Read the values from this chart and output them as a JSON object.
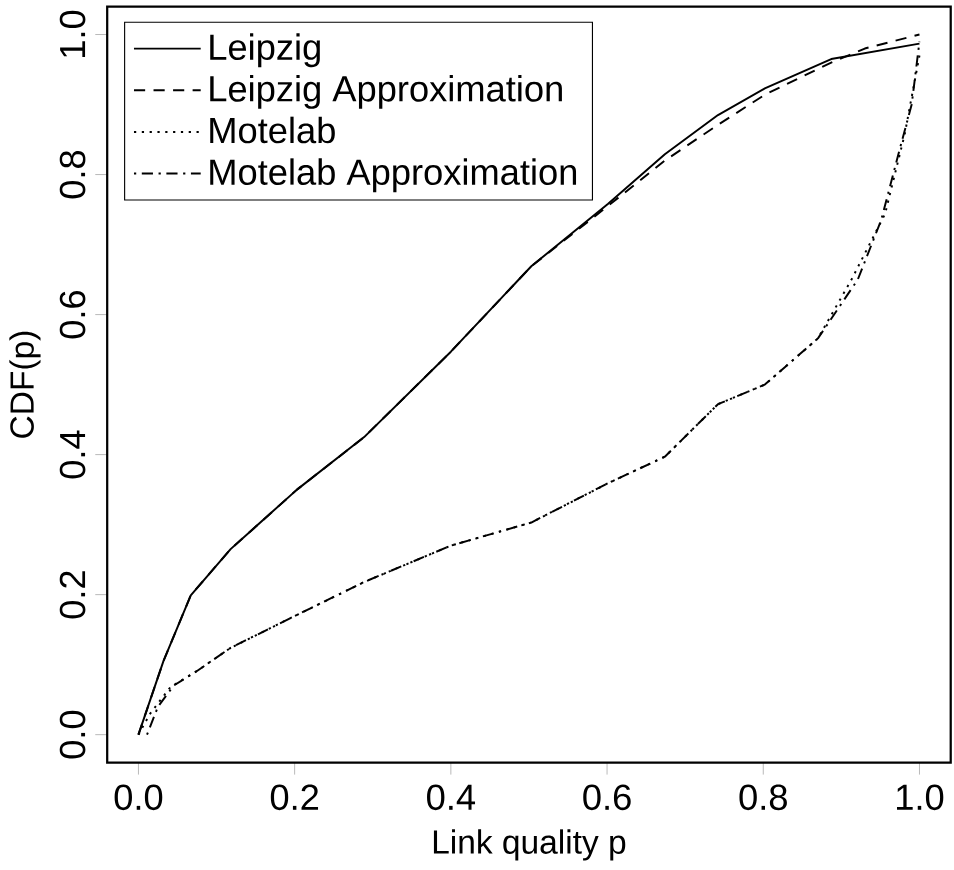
{
  "chart_data": {
    "type": "line",
    "xlabel": "Link quality p",
    "ylabel": "CDF(p)",
    "xlim": [
      -0.04,
      1.04
    ],
    "ylim": [
      -0.04,
      1.04
    ],
    "xticks": [
      {
        "value": 0,
        "label": "0.0"
      },
      {
        "value": 0.2,
        "label": "0.2"
      },
      {
        "value": 0.4,
        "label": "0.4"
      },
      {
        "value": 0.6,
        "label": "0.6"
      },
      {
        "value": 0.8,
        "label": "0.8"
      },
      {
        "value": 1,
        "label": "1.0"
      }
    ],
    "yticks": [
      {
        "value": 0,
        "label": "0.0"
      },
      {
        "value": 0.2,
        "label": "0.2"
      },
      {
        "value": 0.4,
        "label": "0.4"
      },
      {
        "value": 0.6,
        "label": "0.6"
      },
      {
        "value": 0.8,
        "label": "0.8"
      },
      {
        "value": 1,
        "label": "1.0"
      }
    ],
    "legend": "top left",
    "grid": false,
    "marker": "none",
    "series": [
      {
        "name": "Leipzig",
        "color": "#000000",
        "line_style": "solid",
        "x": [
          0,
          0.032,
          0.067,
          0.118,
          0.203,
          0.289,
          0.4,
          0.503,
          0.601,
          0.674,
          0.742,
          0.802,
          0.887,
          1.0
        ],
        "values": [
          0,
          0.105,
          0.199,
          0.265,
          0.35,
          0.425,
          0.547,
          0.669,
          0.758,
          0.829,
          0.885,
          0.923,
          0.965,
          0.987
        ]
      },
      {
        "name": "Leipzig Approximation",
        "color": "#000000",
        "line_style": "dashed",
        "x": [
          0,
          0.032,
          0.067,
          0.118,
          0.203,
          0.289,
          0.4,
          0.503,
          0.601,
          0.674,
          0.742,
          0.802,
          0.887,
          0.93,
          1.0
        ],
        "values": [
          0,
          0.105,
          0.199,
          0.265,
          0.35,
          0.425,
          0.547,
          0.669,
          0.755,
          0.82,
          0.871,
          0.914,
          0.96,
          0.98,
          1.0
        ]
      },
      {
        "name": "Motelab",
        "color": "#000000",
        "line_style": "dotted",
        "x": [
          0,
          0.015,
          0.041,
          0.075,
          0.118,
          0.203,
          0.289,
          0.4,
          0.503,
          0.601,
          0.674,
          0.742,
          0.802,
          0.87,
          0.913,
          0.956,
          0.981,
          1.0
        ],
        "values": [
          0,
          0.03,
          0.068,
          0.091,
          0.124,
          0.171,
          0.218,
          0.27,
          0.303,
          0.359,
          0.397,
          0.472,
          0.5,
          0.566,
          0.65,
          0.744,
          0.857,
          0.97
        ]
      },
      {
        "name": "Motelab Approximation",
        "color": "#000000",
        "line_style": "dashdot",
        "x": [
          0.011,
          0.025,
          0.045,
          0.075,
          0.118,
          0.203,
          0.289,
          0.4,
          0.503,
          0.601,
          0.674,
          0.742,
          0.802,
          0.87,
          0.921,
          0.951,
          0.973,
          0.99,
          1.0
        ],
        "values": [
          0,
          0.04,
          0.07,
          0.091,
          0.124,
          0.171,
          0.218,
          0.27,
          0.303,
          0.359,
          0.397,
          0.472,
          0.5,
          0.566,
          0.65,
          0.735,
          0.829,
          0.9,
          0.99
        ]
      }
    ]
  }
}
